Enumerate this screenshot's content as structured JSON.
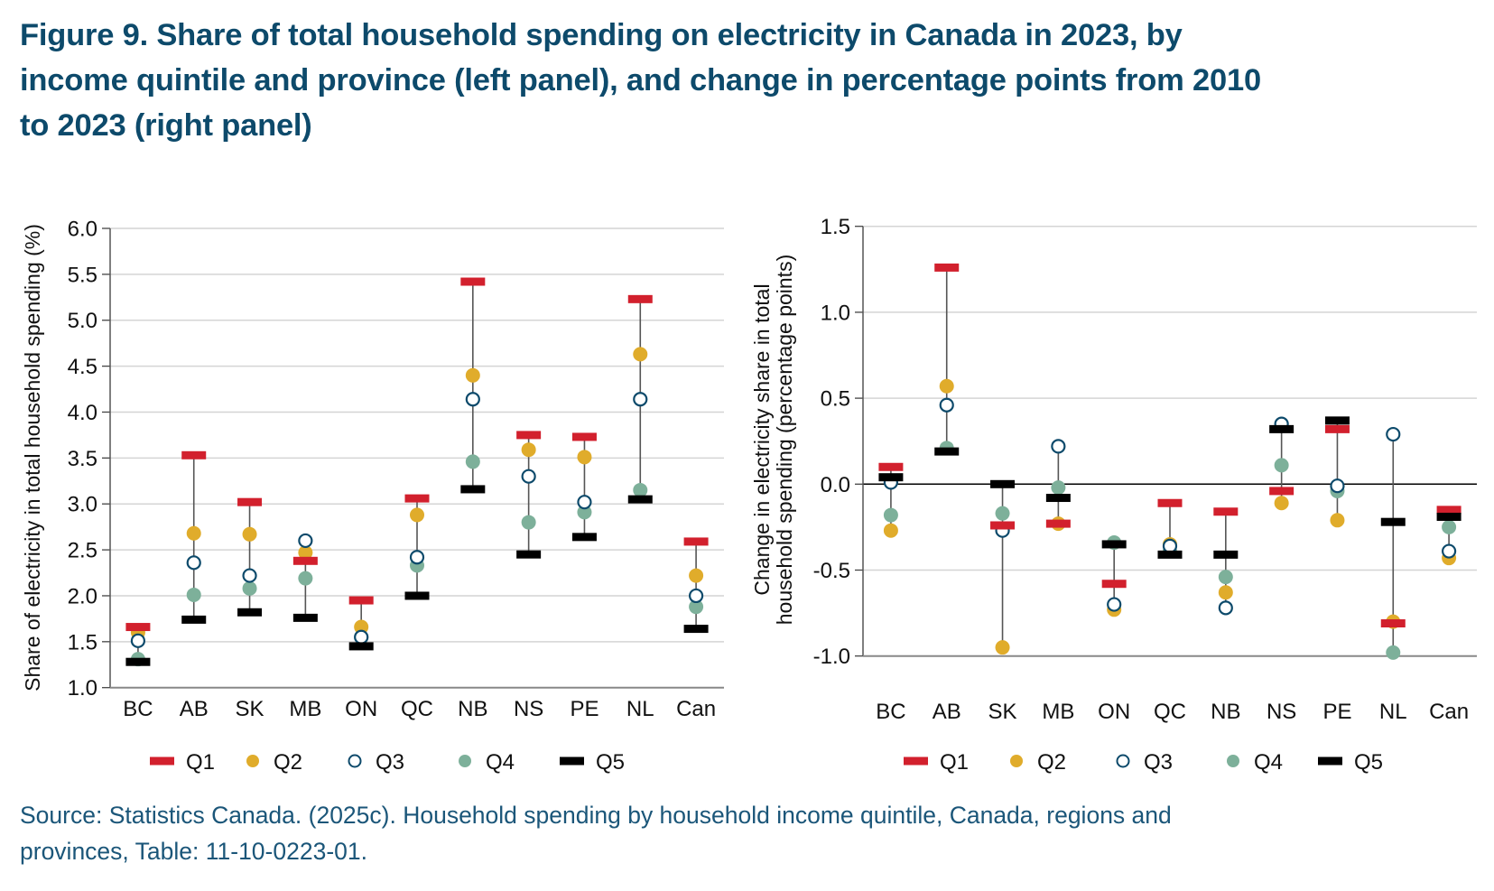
{
  "title": {
    "lines": [
      "Figure 9. Share of total household spending on electricity in Canada in 2023, by",
      "income quintile and province (left panel), and change in percentage points from 2010",
      "to 2023 (right panel)"
    ]
  },
  "source": {
    "lines": [
      "Source: Statistics Canada. (2025c). Household spending by household income quintile, Canada, regions and",
      "provinces, Table: 11-10-0223-01."
    ]
  },
  "colors": {
    "Q1": "#d2202d",
    "Q2": "#e0ac2b",
    "Q3": "#0d4a6b",
    "Q4": "#7db09a",
    "Q5": "#000000",
    "title": "#0d4a6b",
    "source": "#1b5679"
  },
  "chart_data": [
    {
      "type": "scatter",
      "title": "Share of electricity in total household spending, 2023",
      "xlabel": "",
      "ylabel": "Share of electricity in total household spending (%)",
      "ylim": [
        1.0,
        6.0
      ],
      "yticks": [
        "1.0",
        "1.5",
        "2.0",
        "2.5",
        "3.0",
        "3.5",
        "4.0",
        "4.5",
        "5.0",
        "5.5",
        "6.0"
      ],
      "grid": true,
      "legend_position": "bottom",
      "categories": [
        "BC",
        "AB",
        "SK",
        "MB",
        "ON",
        "QC",
        "NB",
        "NS",
        "PE",
        "NL",
        "Can"
      ],
      "series": [
        {
          "name": "Q1",
          "marker": "bar",
          "values": [
            1.66,
            3.53,
            3.02,
            2.38,
            1.95,
            3.06,
            5.42,
            3.75,
            3.73,
            5.23,
            2.59
          ]
        },
        {
          "name": "Q2",
          "marker": "dot",
          "values": [
            1.6,
            2.68,
            2.67,
            2.47,
            1.66,
            2.88,
            4.4,
            3.59,
            3.51,
            4.63,
            2.22
          ]
        },
        {
          "name": "Q3",
          "marker": "ring",
          "values": [
            1.51,
            2.36,
            2.22,
            2.6,
            1.55,
            2.42,
            4.14,
            3.3,
            3.02,
            4.14,
            2.0
          ]
        },
        {
          "name": "Q4",
          "marker": "dot",
          "values": [
            1.31,
            2.01,
            2.08,
            2.19,
            1.55,
            2.33,
            3.46,
            2.8,
            2.91,
            3.15,
            1.88
          ]
        },
        {
          "name": "Q5",
          "marker": "bar",
          "values": [
            1.28,
            1.74,
            1.82,
            1.76,
            1.45,
            2.0,
            3.16,
            2.45,
            2.64,
            3.05,
            1.64
          ]
        }
      ]
    },
    {
      "type": "scatter",
      "title": "Change in electricity share, 2010 to 2023",
      "xlabel": "",
      "ylabel": [
        "Change in electricity share in total",
        "household spending (percentage points)"
      ],
      "ylim": [
        -1.0,
        1.5
      ],
      "yticks": [
        "-1.0",
        "-0.5",
        "0.0",
        "0.5",
        "1.0",
        "1.5"
      ],
      "grid": true,
      "zero_line": true,
      "legend_position": "bottom",
      "categories": [
        "BC",
        "AB",
        "SK",
        "MB",
        "ON",
        "QC",
        "NB",
        "NS",
        "PE",
        "NL",
        "Can"
      ],
      "series": [
        {
          "name": "Q1",
          "marker": "bar",
          "values": [
            0.1,
            1.26,
            -0.24,
            -0.23,
            -0.58,
            -0.11,
            -0.16,
            -0.04,
            0.32,
            -0.81,
            -0.15
          ]
        },
        {
          "name": "Q2",
          "marker": "dot",
          "values": [
            -0.27,
            0.57,
            -0.95,
            -0.23,
            -0.73,
            -0.35,
            -0.63,
            -0.11,
            -0.21,
            -0.8,
            -0.43
          ]
        },
        {
          "name": "Q3",
          "marker": "ring",
          "values": [
            0.01,
            0.46,
            -0.27,
            0.22,
            -0.7,
            -0.36,
            -0.72,
            0.35,
            -0.01,
            0.29,
            -0.39
          ]
        },
        {
          "name": "Q4",
          "marker": "dot",
          "values": [
            -0.18,
            0.21,
            -0.17,
            -0.02,
            -0.34,
            -0.39,
            -0.54,
            0.11,
            -0.04,
            -0.98,
            -0.25
          ]
        },
        {
          "name": "Q5",
          "marker": "bar",
          "values": [
            0.04,
            0.19,
            0.0,
            -0.08,
            -0.35,
            -0.41,
            -0.41,
            0.32,
            0.37,
            -0.22,
            -0.19
          ]
        }
      ]
    }
  ]
}
